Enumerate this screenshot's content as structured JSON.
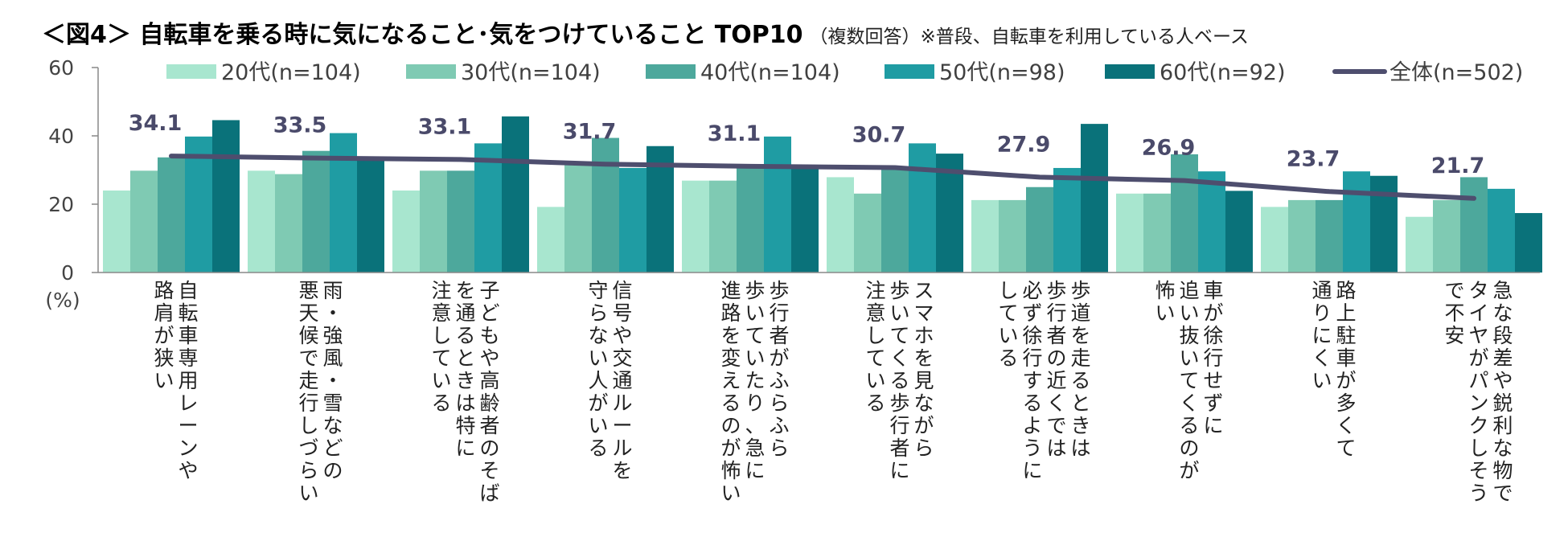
{
  "chart_data": {
    "type": "bar",
    "title": "＜図4＞ 自転車を乗る時に気になること･気をつけていること TOP10",
    "subtitle": "（複数回答）※普段、自転車を利用している人ベース",
    "ylabel": "(%)",
    "ylim": [
      0,
      60
    ],
    "yticks": [
      0,
      20,
      40,
      60
    ],
    "legend_position": "top",
    "categories": [
      [
        "自転車専用レーンや",
        "路肩が狭い"
      ],
      [
        "雨・強風・雪などの",
        "悪天候で走行しづらい"
      ],
      [
        "子どもや高齢者のそば",
        "を通るときは特に",
        "注意している"
      ],
      [
        "信号や交通ルールを",
        "守らない人がいる"
      ],
      [
        "歩行者がふらふら",
        "歩いていたり、急に",
        "進路を変えるのが怖い"
      ],
      [
        "スマホを見ながら",
        "歩いてくる歩行者に",
        "注意している"
      ],
      [
        "歩道を走るときは",
        "歩行者の近くでは",
        "必ず徐行するように",
        "している"
      ],
      [
        "車が徐行せずに",
        "追い抜いてくるのが",
        "怖い"
      ],
      [
        "路上駐車が多くて",
        "通りにくい"
      ],
      [
        "急な段差や鋭利な物で",
        "タイヤがパンクしそう",
        "で不安"
      ]
    ],
    "series": [
      {
        "name": "20代(n=104)",
        "color": "#a8e6cf",
        "values": [
          24.0,
          29.8,
          24.0,
          19.2,
          26.9,
          27.9,
          21.2,
          23.1,
          19.2,
          16.3
        ]
      },
      {
        "name": "30代(n=104)",
        "color": "#7fcab3",
        "values": [
          29.8,
          28.8,
          29.8,
          31.7,
          26.9,
          23.1,
          21.2,
          23.1,
          21.2,
          21.2
        ]
      },
      {
        "name": "40代(n=104)",
        "color": "#4da89c",
        "values": [
          33.7,
          35.6,
          29.8,
          39.4,
          31.7,
          30.8,
          25.0,
          34.6,
          21.2,
          27.9
        ]
      },
      {
        "name": "50代(n=98)",
        "color": "#1f9ca3",
        "values": [
          39.8,
          40.8,
          37.8,
          30.6,
          39.8,
          37.8,
          30.6,
          29.6,
          29.6,
          24.5
        ]
      },
      {
        "name": "60代(n=92)",
        "color": "#0a727a",
        "values": [
          44.6,
          33.7,
          45.7,
          37.0,
          31.5,
          34.8,
          43.5,
          23.9,
          28.3,
          17.4
        ]
      }
    ],
    "line": {
      "name": "全体(n=502)",
      "color": "#4e4e6e",
      "values": [
        34.1,
        33.5,
        33.1,
        31.7,
        31.1,
        30.7,
        27.9,
        26.9,
        23.7,
        21.7
      ]
    },
    "data_labels": [
      "34.1",
      "33.5",
      "33.1",
      "31.7",
      "31.1",
      "30.7",
      "27.9",
      "26.9",
      "23.7",
      "21.7"
    ]
  }
}
